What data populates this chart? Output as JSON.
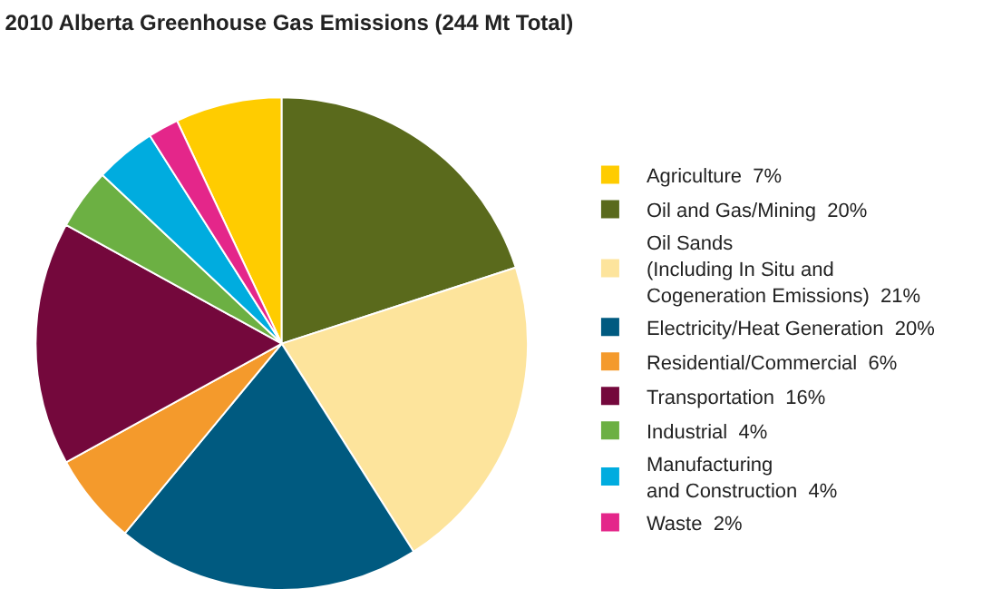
{
  "chart_data": {
    "type": "pie",
    "title": "2010 Alberta Greenhouse Gas Emissions (244 Mt Total)",
    "categories": [
      "Agriculture  7%",
      "Oil and Gas/Mining  20%",
      "Oil Sands\n(Including In Situ and\nCogeneration Emissions)  21%",
      "Electricity/Heat Generation  20%",
      "Residential/Commercial  6%",
      "Transportation  16%",
      "Industrial  4%",
      "Manufacturing\nand Construction  4%",
      "Waste  2%"
    ],
    "values": [
      7,
      20,
      21,
      20,
      6,
      16,
      4,
      4,
      2
    ],
    "colors": [
      "#ffcc00",
      "#5a6a1c",
      "#fde49c",
      "#005a80",
      "#f49a2c",
      "#74083c",
      "#6cb043",
      "#00acdf",
      "#e4268a"
    ],
    "legend": "right"
  }
}
